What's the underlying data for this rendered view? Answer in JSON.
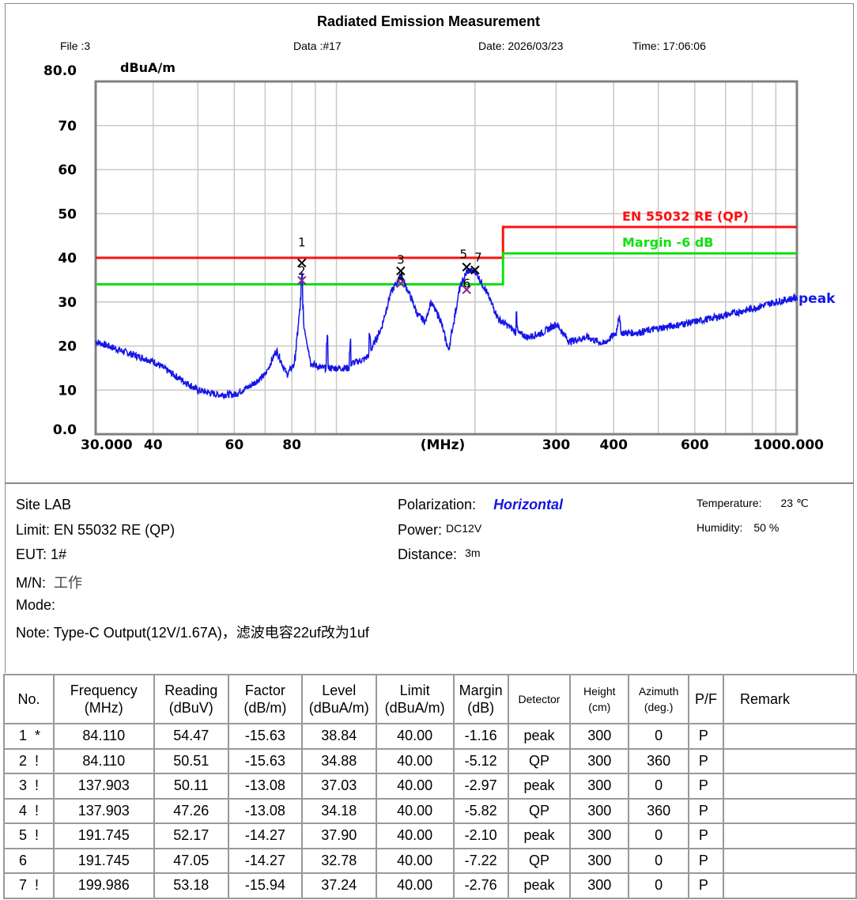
{
  "header": {
    "title": "Radiated Emission Measurement",
    "file": "File :3",
    "data": "Data :#17",
    "date": "Date: 2026/03/23",
    "time": "Time: 17:06:06"
  },
  "chart_data": {
    "type": "line",
    "title": "Radiated Emission Measurement",
    "ylabel": "dBuA/m",
    "xlabel": "(MHz)",
    "xscale": "log",
    "xlim": [
      30,
      1000
    ],
    "ylim": [
      0,
      80
    ],
    "grid": true,
    "y_ticks": [
      "0.0",
      "10",
      "20",
      "30",
      "40",
      "50",
      "60",
      "70",
      "80.0"
    ],
    "y_tick_values": [
      0,
      10,
      20,
      30,
      40,
      50,
      60,
      70,
      80
    ],
    "x_ticks": [
      {
        "v": 30,
        "label": "30.000"
      },
      {
        "v": 40,
        "label": "40"
      },
      {
        "v": 60,
        "label": "60"
      },
      {
        "v": 80,
        "label": "80"
      },
      {
        "v": 300,
        "label": "300"
      },
      {
        "v": 400,
        "label": "400"
      },
      {
        "v": 600,
        "label": "600"
      },
      {
        "v": 1000,
        "label": "1000.000"
      }
    ],
    "x_gridlines": [
      40,
      50,
      60,
      70,
      80,
      90,
      100,
      200,
      300,
      400,
      500,
      600,
      700,
      800,
      900
    ],
    "series": [
      {
        "name": "peak",
        "color": "#1515e6",
        "points": [
          [
            30,
            21
          ],
          [
            35,
            18.5
          ],
          [
            40,
            16.5
          ],
          [
            45,
            13
          ],
          [
            50,
            10
          ],
          [
            55,
            9
          ],
          [
            60,
            9
          ],
          [
            65,
            11
          ],
          [
            70,
            13.5
          ],
          [
            74,
            19
          ],
          [
            78,
            13.5
          ],
          [
            81,
            16
          ],
          [
            83.5,
            30
          ],
          [
            84.1,
            38
          ],
          [
            84.7,
            25
          ],
          [
            85.5,
            23
          ],
          [
            88,
            16
          ],
          [
            93,
            15
          ],
          [
            95,
            15
          ],
          [
            95.4,
            27
          ],
          [
            95.8,
            15
          ],
          [
            100,
            15
          ],
          [
            106.5,
            15
          ],
          [
            107,
            23
          ],
          [
            107.5,
            16
          ],
          [
            115,
            17
          ],
          [
            117.5,
            18
          ],
          [
            118,
            25
          ],
          [
            118.5,
            19
          ],
          [
            125,
            24
          ],
          [
            131,
            32
          ],
          [
            138,
            36
          ],
          [
            145,
            31
          ],
          [
            150,
            27
          ],
          [
            156,
            25.5
          ],
          [
            160,
            30
          ],
          [
            168,
            26
          ],
          [
            175,
            19
          ],
          [
            185,
            33
          ],
          [
            192,
            37
          ],
          [
            200,
            37
          ],
          [
            210,
            33
          ],
          [
            225,
            26
          ],
          [
            240,
            24
          ],
          [
            245,
            23
          ],
          [
            246,
            30
          ],
          [
            247,
            23
          ],
          [
            260,
            22
          ],
          [
            280,
            23
          ],
          [
            300,
            25
          ],
          [
            320,
            21
          ],
          [
            350,
            22
          ],
          [
            380,
            20.5
          ],
          [
            405,
            23
          ],
          [
            410,
            27
          ],
          [
            415,
            23
          ],
          [
            450,
            23
          ],
          [
            500,
            24
          ],
          [
            600,
            25.5
          ],
          [
            700,
            27
          ],
          [
            800,
            28.5
          ],
          [
            900,
            30
          ],
          [
            1000,
            31
          ]
        ]
      },
      {
        "name": "EN 55032 RE (QP)",
        "color": "#ff1010",
        "points": [
          [
            30,
            40
          ],
          [
            230,
            40
          ],
          [
            230,
            47
          ],
          [
            1000,
            47
          ]
        ]
      },
      {
        "name": "Margin -6 dB",
        "color": "#10e010",
        "points": [
          [
            30,
            34
          ],
          [
            230,
            34
          ],
          [
            230,
            41
          ],
          [
            1000,
            41
          ]
        ]
      }
    ],
    "markers": [
      {
        "no": "1",
        "freq": 84.11,
        "level": 38.84,
        "detector": "peak",
        "color": "#000000"
      },
      {
        "no": "2",
        "freq": 84.11,
        "level": 34.88,
        "detector": "QP",
        "color": "#8a2a8a"
      },
      {
        "no": "3",
        "freq": 137.903,
        "level": 37.03,
        "detector": "peak",
        "color": "#000000"
      },
      {
        "no": "4",
        "freq": 137.903,
        "level": 34.18,
        "detector": "QP",
        "color": "#8a2a8a"
      },
      {
        "no": "5",
        "freq": 191.745,
        "level": 37.9,
        "detector": "peak",
        "color": "#000000"
      },
      {
        "no": "6",
        "freq": 191.745,
        "level": 32.78,
        "detector": "QP",
        "color": "#8a2a8a"
      },
      {
        "no": "7",
        "freq": 199.986,
        "level": 37.24,
        "detector": "peak",
        "color": "#000000"
      }
    ]
  },
  "info": {
    "site": "Site  LAB",
    "limit": "Limit:  EN 55032 RE (QP)",
    "eut": "EUT:  1#",
    "mn_label": "M/N:",
    "mn_value": "工作",
    "mode": "Mode:",
    "note": "Note:  Type-C Output(12V/1.67A)，滤波电容22uf改为1uf",
    "polarization_label": "Polarization:",
    "polarization_value": "Horizontal",
    "power_label": "Power:",
    "power_value": "DC12V",
    "distance_label": "Distance:",
    "distance_value": "3m",
    "temperature_label": "Temperature:",
    "temperature_value": "23 ℃",
    "humidity_label": "Humidity:",
    "humidity_value": "50 %"
  },
  "table": {
    "headers": [
      [
        "No.",
        ""
      ],
      [
        "Frequency",
        "(MHz)"
      ],
      [
        "Reading",
        "(dBuV)"
      ],
      [
        "Factor",
        "(dB/m)"
      ],
      [
        "Level",
        "(dBuA/m)"
      ],
      [
        "Limit",
        "(dBuA/m)"
      ],
      [
        "Margin",
        "(dB)"
      ],
      [
        "Detector",
        ""
      ],
      [
        "Height",
        "(cm)"
      ],
      [
        "Azimuth",
        "(deg.)"
      ],
      [
        "P/F",
        ""
      ],
      [
        "Remark",
        ""
      ]
    ],
    "rows": [
      [
        "1  *",
        "84.110",
        "54.47",
        "-15.63",
        "38.84",
        "40.00",
        "-1.16",
        "peak",
        "300",
        "0",
        "P",
        ""
      ],
      [
        "2  !",
        "84.110",
        "50.51",
        "-15.63",
        "34.88",
        "40.00",
        "-5.12",
        "QP",
        "300",
        "360",
        "P",
        ""
      ],
      [
        "3  !",
        "137.903",
        "50.11",
        "-13.08",
        "37.03",
        "40.00",
        "-2.97",
        "peak",
        "300",
        "0",
        "P",
        ""
      ],
      [
        "4  !",
        "137.903",
        "47.26",
        "-13.08",
        "34.18",
        "40.00",
        "-5.82",
        "QP",
        "300",
        "360",
        "P",
        ""
      ],
      [
        "5  !",
        "191.745",
        "52.17",
        "-14.27",
        "37.90",
        "40.00",
        "-2.10",
        "peak",
        "300",
        "0",
        "P",
        ""
      ],
      [
        "6",
        "191.745",
        "47.05",
        "-14.27",
        "32.78",
        "40.00",
        "-7.22",
        "QP",
        "300",
        "0",
        "P",
        ""
      ],
      [
        "7  !",
        "199.986",
        "53.18",
        "-15.94",
        "37.24",
        "40.00",
        "-2.76",
        "peak",
        "300",
        "0",
        "P",
        ""
      ]
    ]
  }
}
